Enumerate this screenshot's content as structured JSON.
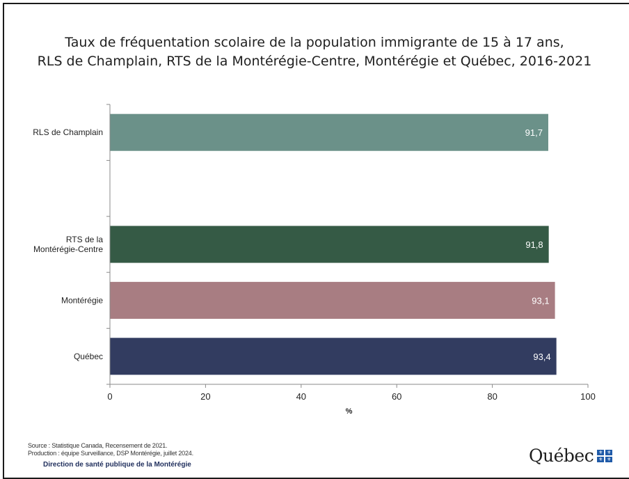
{
  "title_line1": "Taux de fréquentation scolaire de la population immigrante de 15 à 17 ans,",
  "title_line2": "RLS de Champlain, RTS de la Montérégie-Centre, Montérégie et Québec, 2016-2021",
  "footer": {
    "source": "Source : Statistique Canada, Recensement de 2021.",
    "production": "Production : équipe Surveillance, DSP Montérégie, juillet 2024.",
    "dsp": "Direction de santé publique de la Montérégie",
    "logo_text": "Québec",
    "logo_flag": "⚜"
  },
  "chart_data": {
    "type": "bar",
    "orientation": "horizontal",
    "categories": [
      [
        "RLS de Champlain"
      ],
      [],
      [
        "RTS de la",
        "Montérégie-Centre"
      ],
      [
        "Montérégie"
      ],
      [
        "Québec"
      ]
    ],
    "values": [
      91.7,
      null,
      91.8,
      93.1,
      93.4
    ],
    "value_labels": [
      "91,7",
      "",
      "91,8",
      "93,1",
      "93,4"
    ],
    "colors": [
      "#6b9189",
      null,
      "#355a45",
      "#a87d82",
      "#323c60"
    ],
    "xlabel": "%",
    "xlim": [
      0,
      100
    ],
    "xticks": [
      0,
      20,
      40,
      60,
      80,
      100
    ],
    "grid": false,
    "legend": "none"
  }
}
